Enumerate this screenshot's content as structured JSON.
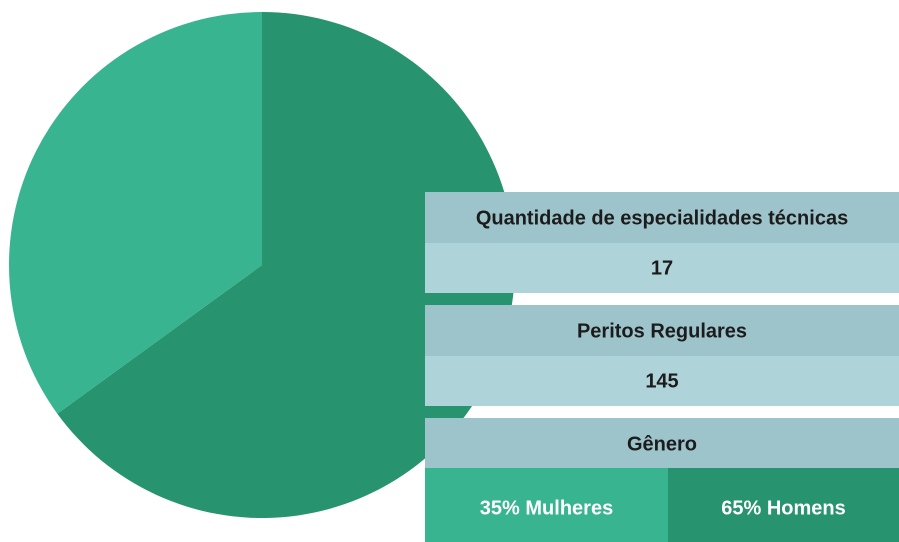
{
  "chart_data": {
    "type": "pie",
    "values": [
      35,
      65
    ],
    "value_labels": [
      "35% Mulheres",
      "65% Homens"
    ],
    "colors": [
      "#38b490",
      "#27936f"
    ]
  },
  "table": {
    "rows": [
      {
        "header": "Quantidade de especialidades técnicas",
        "value": "17"
      },
      {
        "header": "Peritos Regulares",
        "value": "145"
      },
      {
        "header": "Gênero"
      }
    ]
  }
}
